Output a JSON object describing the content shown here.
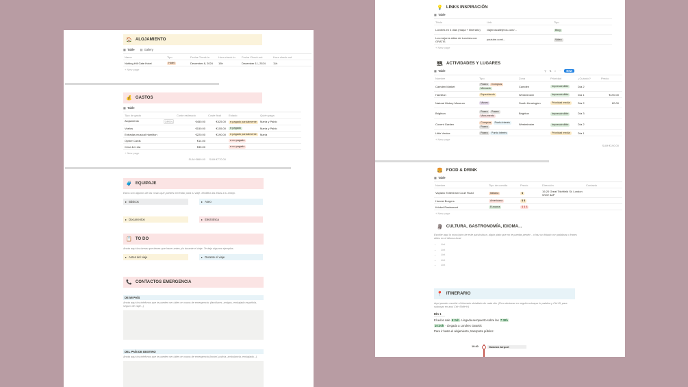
{
  "left": {
    "alojamiento": {
      "title": "ALOJAMIENTO",
      "tabs": [
        "Table",
        "Gallery"
      ],
      "headers": [
        "Name",
        "Tipo",
        "Fecha Check-in",
        "Hora check-in",
        "Fecha Check-out",
        "Hora check-out"
      ],
      "rows": [
        [
          "Notting Hill Gate Hotel",
          "Hotel",
          "December 8, 2024",
          "15h",
          "December 11, 2024",
          "11h"
        ]
      ],
      "new_page": "+ New page"
    },
    "gastos": {
      "title": "GASTOS",
      "tab": "Table",
      "headers": [
        "Tipo de gasto",
        "Coste estimado",
        "Coste final",
        "Estado",
        "Quién paga"
      ],
      "rows": [
        {
          "name": "Alojamiento",
          "open": "OPEN",
          "est": "€450.00",
          "final": "€425.00",
          "estado": "pagado parcialmente",
          "quien": "María y Pablo"
        },
        {
          "name": "Vuelos",
          "est": "€150.00",
          "final": "€155.00",
          "estado": "pagado",
          "quien": "María y Pablo"
        },
        {
          "name": "Entradas musical Hamilton",
          "est": "€220.00",
          "final": "€190.00",
          "estado": "pagado parcialmente",
          "quien": "María"
        },
        {
          "name": "Oyster Cards",
          "est": "€14.00",
          "final": "",
          "estado": "no pagado",
          "quien": ""
        },
        {
          "name": "Cena 1er día",
          "est": "€35.00",
          "final": "",
          "estado": "no pagado",
          "quien": ""
        }
      ],
      "new_page": "+ New page",
      "sum_est": "SUM €869.00",
      "sum_final": "SUM €770.00"
    },
    "equipaje": {
      "title": "EQUIPAJE",
      "note": "Estos son algunos de las cosas que puedes necesitar para tu viaje. Modifica las listas a tu antojo.",
      "items": [
        "Básicos",
        "Aseo",
        "Documentos",
        "Electrónica"
      ]
    },
    "todo": {
      "title": "TO DO",
      "note": "Anota aquí las tareas que tienes que hacer antes y/o durante el viaje. Te dejo algunos ejemplos.",
      "items": [
        "Antes del viaje",
        "Durante el viaje"
      ]
    },
    "contactos": {
      "title": "CONTACTOS EMERGENCIA",
      "mi_pais": "DE MI PAÍS",
      "mi_pais_note": "Anota aquí los teléfonos que te pueden ser útiles en casos de emergencia: (familiares, amigos, embajada española, seguro de viaje...)",
      "destino": "DEL PAÍS DE DESTINO",
      "destino_note": "Anota aquí los teléfonos que te pueden ser útiles en casos de emergencia (hostel, policía, ambulancia, embajada...)."
    }
  },
  "right": {
    "links": {
      "title": "LINKS INSPIRACIÓN",
      "tab": "Table",
      "headers": [
        "Título",
        "Link",
        "Tipo"
      ],
      "rows": [
        {
          "title": "Londres en 4 días (mapa + itinerario)",
          "link": "viajeroscallejeros.com/...",
          "tipo": "Blog"
        },
        {
          "title": "Los mejores sitios de Londres con GRATIS",
          "link": "youtube.com/...",
          "tipo": "Video"
        }
      ],
      "new_page": "+ New page"
    },
    "actividades": {
      "title": "ACTIVIDADES Y LUGARES",
      "tab": "Table",
      "new_btn": "New",
      "headers": [
        "Nombre",
        "Tipo",
        "Zona",
        "Prioridad",
        "¿Cuándo?",
        "Precio"
      ],
      "rows": [
        {
          "name": "Camden Market",
          "tags": [
            "Paseo",
            "Compras",
            "Mercado"
          ],
          "zona": "Camden",
          "prio": "Imprescindible",
          "cuando": "Día 2",
          "precio": ""
        },
        {
          "name": "Hamilton",
          "tags": [
            "Espectáculo"
          ],
          "zona": "Westminster",
          "prio": "Imprescindible",
          "cuando": "Día 1",
          "precio": "€190.00"
        },
        {
          "name": "Natural History Museum",
          "tags": [
            "Museo"
          ],
          "zona": "South Kensington",
          "prio": "Prioridad media",
          "cuando": "Día 2",
          "precio": "€0.00"
        },
        {
          "name": "Brighton",
          "tags": [
            "Paseo",
            "Paseo",
            "Monumento"
          ],
          "zona": "Brighton",
          "prio": "Imprescindible",
          "cuando": "Día 3",
          "precio": ""
        },
        {
          "name": "Covent Garden",
          "tags": [
            "Compras",
            "Punto interés",
            "Paseo"
          ],
          "zona": "Westminster",
          "prio": "Imprescindible",
          "cuando": "Día 2",
          "precio": ""
        },
        {
          "name": "Little Venice",
          "tags": [
            "Paseo",
            "Punto interés"
          ],
          "zona": "",
          "prio": "Prioridad media",
          "cuando": "Día 1",
          "precio": ""
        }
      ],
      "new_page": "+ New page",
      "sum": "SUM €190.00"
    },
    "food": {
      "title": "FOOD & DRINK",
      "tab": "Table",
      "headers": [
        "Nombre",
        "Tipo de comida",
        "Precio",
        "Dirección",
        "Contacto"
      ],
      "rows": [
        {
          "name": "Vapiano Tottenham Court Road",
          "tipo": "Italiana",
          "precio": "$",
          "dir": "19-20 Great Titchfield St, London W1W 8AP"
        },
        {
          "name": "Honest Burgers",
          "tipo": "Americana",
          "precio": "$ $",
          "dir": ""
        },
        {
          "name": "Kricket Restaurant",
          "tipo": "Europea",
          "precio": "$ $ $",
          "dir": ""
        }
      ],
      "new_page": "+ New page"
    },
    "cultura": {
      "title": "CULTURA, GASTRONOMÍA, IDIOMA...",
      "note": "Escribe aquí lo más típico de este país/cultura, algún plato que no te puedas perder... o haz un listado con palabras o frases útiles en el idioma local.",
      "items": [
        "List",
        "List",
        "List",
        "List",
        "List"
      ]
    },
    "itinerario": {
      "title": "ITINERARIO",
      "note": "Aquí puedes escribir el itinerario detallado de cada día. (Pero destacar en negrita subrayar lo palabra y Ctrl+B, para subrayar en azul Ctrl+Shift+H)",
      "day": "DÍA 1",
      "line1_pre": "El avión sale",
      "line1_h1": "9:24h",
      "line1_mid": ". Llegada aeropuerto sobre las",
      "line1_h2": "7:30h",
      "line2_time": "10:30h",
      "line2_text": "- Llegada a Londres Gatwick",
      "line3": "Para ir hasta el alojamiento, transporte público:",
      "timeline_time": "10:40",
      "timeline_label": "Gatwick Airport"
    }
  }
}
